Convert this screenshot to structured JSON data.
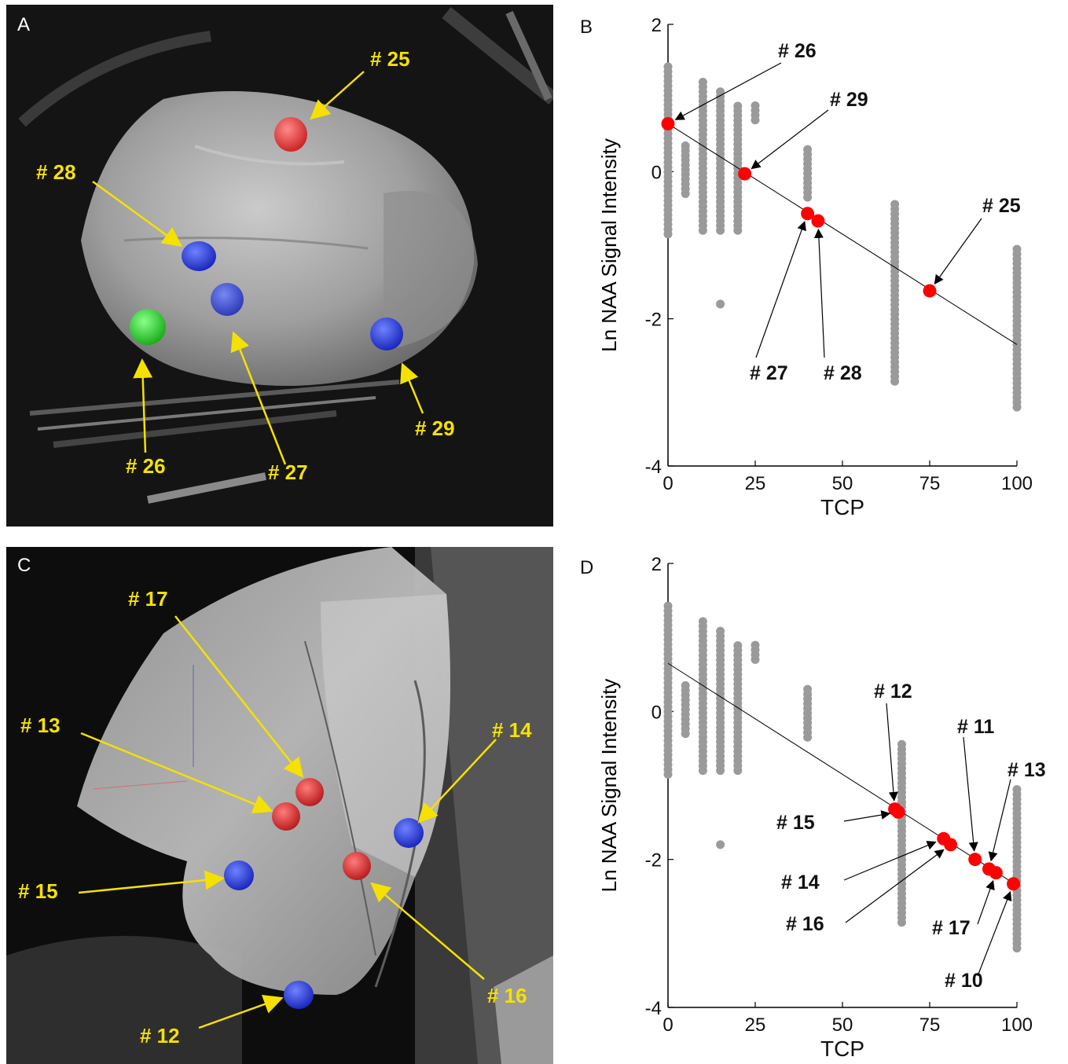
{
  "panels": {
    "A": {
      "letter": "A",
      "labels": [
        "# 25",
        "# 28",
        "# 26",
        "# 27",
        "# 29"
      ]
    },
    "B": {
      "letter": "B",
      "annotations": [
        "# 26",
        "# 29",
        "# 27",
        "# 28",
        "# 25"
      ]
    },
    "C": {
      "letter": "C",
      "labels": [
        "# 17",
        "# 13",
        "# 14",
        "# 15",
        "# 16",
        "# 12"
      ]
    },
    "D": {
      "letter": "D",
      "annotations": [
        "# 12",
        "# 11",
        "# 13",
        "# 15",
        "# 14",
        "# 16",
        "# 17",
        "# 10"
      ]
    }
  },
  "colors": {
    "highlight": "#ff0000",
    "background_points": "#9a9a9a",
    "label_yellow": "#f5e100",
    "marker_blue": "#1a2ed6",
    "marker_green": "#22dd22"
  },
  "chart_data": [
    {
      "panel": "B",
      "type": "scatter",
      "xlabel": "TCP",
      "ylabel": "Ln NAA Signal Intensity",
      "xlim": [
        0,
        100
      ],
      "ylim": [
        -4,
        2
      ],
      "xticks": [
        "0",
        "25",
        "50",
        "75",
        "100"
      ],
      "yticks": [
        "-4",
        "-2",
        "0",
        "2"
      ],
      "fit_line": {
        "x": [
          0,
          100
        ],
        "y": [
          0.65,
          -2.35
        ]
      },
      "background_columns": [
        {
          "x": 0,
          "ymin": -0.85,
          "ymax": 1.45
        },
        {
          "x": 5,
          "ymin": -0.3,
          "ymax": 0.4
        },
        {
          "x": 10,
          "ymin": -0.8,
          "ymax": 1.25
        },
        {
          "x": 15,
          "ymin": -0.8,
          "ymax": 1.1
        },
        {
          "x": 15,
          "ymin": -1.8,
          "ymax": -1.8
        },
        {
          "x": 20,
          "ymin": -0.8,
          "ymax": 0.95
        },
        {
          "x": 25,
          "ymin": 0.7,
          "ymax": 0.95
        },
        {
          "x": 40,
          "ymin": -0.35,
          "ymax": 0.3
        },
        {
          "x": 65,
          "ymin": -2.85,
          "ymax": -0.4
        },
        {
          "x": 100,
          "ymin": -3.2,
          "ymax": -1.05
        }
      ],
      "highlighted": [
        {
          "label": "# 26",
          "x": 0,
          "y": 0.65
        },
        {
          "label": "# 29",
          "x": 22,
          "y": -0.03
        },
        {
          "label": "# 27",
          "x": 40,
          "y": -0.57
        },
        {
          "label": "# 28",
          "x": 43,
          "y": -0.67
        },
        {
          "label": "# 25",
          "x": 75,
          "y": -1.62
        }
      ]
    },
    {
      "panel": "D",
      "type": "scatter",
      "xlabel": "TCP",
      "ylabel": "Ln NAA Signal Intensity",
      "xlim": [
        0,
        100
      ],
      "ylim": [
        -4,
        2
      ],
      "xticks": [
        "0",
        "25",
        "50",
        "75",
        "100"
      ],
      "yticks": [
        "-4",
        "-2",
        "0",
        "2"
      ],
      "fit_line": {
        "x": [
          0,
          100
        ],
        "y": [
          0.65,
          -2.35
        ]
      },
      "background_columns": [
        {
          "x": 0,
          "ymin": -0.85,
          "ymax": 1.45
        },
        {
          "x": 5,
          "ymin": -0.3,
          "ymax": 0.4
        },
        {
          "x": 10,
          "ymin": -0.8,
          "ymax": 1.25
        },
        {
          "x": 15,
          "ymin": -0.8,
          "ymax": 1.1
        },
        {
          "x": 15,
          "ymin": -1.8,
          "ymax": -1.8
        },
        {
          "x": 20,
          "ymin": -0.8,
          "ymax": 0.95
        },
        {
          "x": 25,
          "ymin": 0.7,
          "ymax": 0.95
        },
        {
          "x": 40,
          "ymin": -0.35,
          "ymax": 0.3
        },
        {
          "x": 67,
          "ymin": -2.85,
          "ymax": -0.4
        },
        {
          "x": 100,
          "ymin": -3.2,
          "ymax": -1.05
        }
      ],
      "highlighted": [
        {
          "label": "# 12",
          "x": 65,
          "y": -1.32
        },
        {
          "label": "# 15",
          "x": 66,
          "y": -1.36
        },
        {
          "label": "# 14",
          "x": 79,
          "y": -1.72
        },
        {
          "label": "# 16",
          "x": 81,
          "y": -1.8
        },
        {
          "label": "# 11",
          "x": 88,
          "y": -2.0
        },
        {
          "label": "# 13",
          "x": 92,
          "y": -2.13
        },
        {
          "label": "# 17",
          "x": 94,
          "y": -2.18
        },
        {
          "label": "# 10",
          "x": 99,
          "y": -2.33
        }
      ]
    }
  ]
}
